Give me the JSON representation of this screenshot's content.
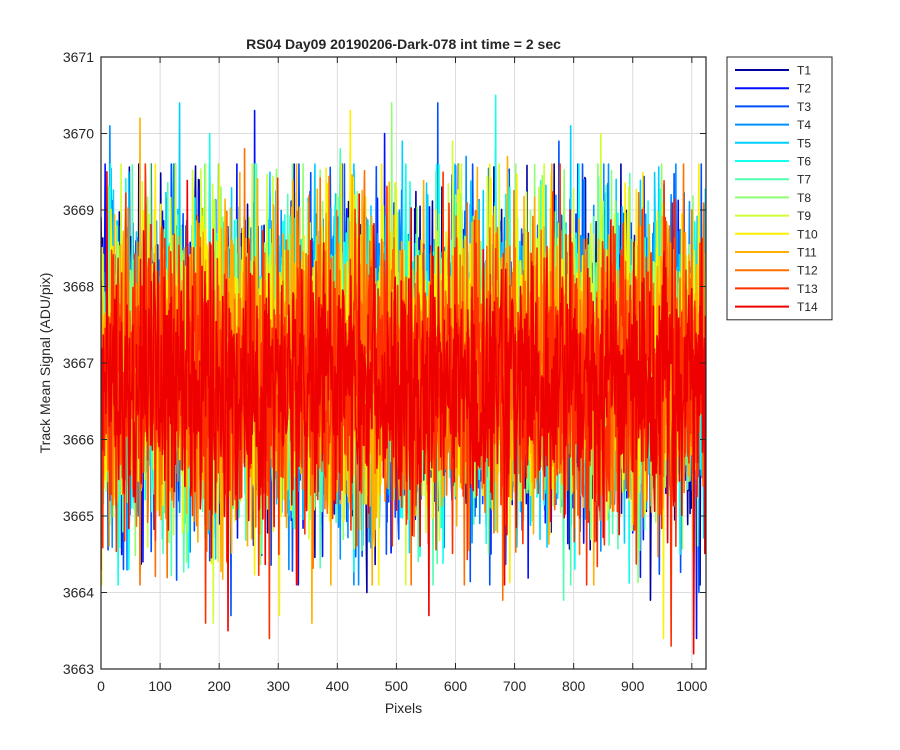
{
  "chart_data": {
    "type": "line",
    "title": "RS04 Day09 20190206-Dark-078 int time = 2 sec",
    "xlabel": "Pixels",
    "ylabel": "Track Mean Signal (ADU/pix)",
    "xlim": [
      0,
      1024
    ],
    "ylim": [
      3663,
      3671
    ],
    "xticks": [
      0,
      100,
      200,
      300,
      400,
      500,
      600,
      700,
      800,
      900,
      1000
    ],
    "yticks": [
      3663,
      3664,
      3665,
      3666,
      3667,
      3668,
      3669,
      3670,
      3671
    ],
    "grid": true,
    "legend_position": "outside-top-right",
    "num_points_per_series": 1024,
    "series": [
      {
        "name": "T1",
        "color": "#00009F",
        "mean": 3667.0,
        "sd": 1.0,
        "spikes": [
          {
            "x": 165,
            "y": 3669.4
          },
          {
            "x": 450,
            "y": 3664.0
          },
          {
            "x": 668,
            "y": 3669.8
          },
          {
            "x": 930,
            "y": 3663.9
          }
        ]
      },
      {
        "name": "T2",
        "color": "#0010FF",
        "mean": 3667.0,
        "sd": 1.0,
        "spikes": [
          {
            "x": 260,
            "y": 3670.3
          },
          {
            "x": 480,
            "y": 3670.0
          },
          {
            "x": 913,
            "y": 3664.2
          },
          {
            "x": 1008,
            "y": 3663.4
          }
        ]
      },
      {
        "name": "T3",
        "color": "#0050FF",
        "mean": 3666.9,
        "sd": 1.0,
        "spikes": [
          {
            "x": 220,
            "y": 3663.7
          },
          {
            "x": 570,
            "y": 3670.4
          },
          {
            "x": 775,
            "y": 3669.9
          },
          {
            "x": 1012,
            "y": 3664.0
          }
        ]
      },
      {
        "name": "T4",
        "color": "#0090FF",
        "mean": 3667.0,
        "sd": 1.0,
        "spikes": [
          {
            "x": 15,
            "y": 3670.1
          },
          {
            "x": 318,
            "y": 3664.3
          },
          {
            "x": 618,
            "y": 3669.7
          },
          {
            "x": 965,
            "y": 3669.2
          }
        ]
      },
      {
        "name": "T5",
        "color": "#00D0FF",
        "mean": 3667.0,
        "sd": 1.0,
        "spikes": [
          {
            "x": 133,
            "y": 3670.4
          },
          {
            "x": 510,
            "y": 3669.9
          },
          {
            "x": 795,
            "y": 3670.1
          },
          {
            "x": 872,
            "y": 3669.4
          }
        ]
      },
      {
        "name": "T6",
        "color": "#10FFEF",
        "mean": 3667.0,
        "sd": 1.0,
        "spikes": [
          {
            "x": 668,
            "y": 3670.5
          },
          {
            "x": 184,
            "y": 3670.0
          },
          {
            "x": 980,
            "y": 3664.5
          }
        ]
      },
      {
        "name": "T7",
        "color": "#50FFAF",
        "mean": 3666.9,
        "sd": 1.0,
        "spikes": [
          {
            "x": 783,
            "y": 3663.9
          },
          {
            "x": 405,
            "y": 3669.8
          },
          {
            "x": 25,
            "y": 3665.1
          }
        ]
      },
      {
        "name": "T8",
        "color": "#90FF6F",
        "mean": 3667.0,
        "sd": 1.0,
        "spikes": [
          {
            "x": 492,
            "y": 3670.4
          },
          {
            "x": 145,
            "y": 3664.4
          },
          {
            "x": 702,
            "y": 3669.6
          }
        ]
      },
      {
        "name": "T9",
        "color": "#CFFF30",
        "mean": 3667.0,
        "sd": 1.0,
        "spikes": [
          {
            "x": 190,
            "y": 3663.6
          },
          {
            "x": 595,
            "y": 3669.9
          },
          {
            "x": 846,
            "y": 3670.0
          }
        ]
      },
      {
        "name": "T10",
        "color": "#FFEF00",
        "mean": 3667.0,
        "sd": 1.0,
        "spikes": [
          {
            "x": 422,
            "y": 3670.3
          },
          {
            "x": 302,
            "y": 3663.7
          },
          {
            "x": 952,
            "y": 3663.4
          },
          {
            "x": 893,
            "y": 3669.3
          }
        ]
      },
      {
        "name": "T11",
        "color": "#FFAF00",
        "mean": 3666.9,
        "sd": 1.0,
        "spikes": [
          {
            "x": 66,
            "y": 3670.2
          },
          {
            "x": 357,
            "y": 3663.6
          },
          {
            "x": 688,
            "y": 3669.7
          }
        ]
      },
      {
        "name": "T12",
        "color": "#FF7000",
        "mean": 3666.9,
        "sd": 1.0,
        "spikes": [
          {
            "x": 243,
            "y": 3669.8
          },
          {
            "x": 680,
            "y": 3663.9
          },
          {
            "x": 1000,
            "y": 3669.0
          }
        ]
      },
      {
        "name": "T13",
        "color": "#FF3000",
        "mean": 3666.8,
        "sd": 0.95,
        "spikes": [
          {
            "x": 177,
            "y": 3663.6
          },
          {
            "x": 285,
            "y": 3663.4
          },
          {
            "x": 965,
            "y": 3663.3
          },
          {
            "x": 75,
            "y": 3669.6
          }
        ]
      },
      {
        "name": "T14",
        "color": "#EF0000",
        "mean": 3666.7,
        "sd": 0.85,
        "spikes": [
          {
            "x": 555,
            "y": 3663.7
          },
          {
            "x": 1003,
            "y": 3663.2
          },
          {
            "x": 215,
            "y": 3663.5
          },
          {
            "x": 10,
            "y": 3669.5
          }
        ]
      }
    ]
  }
}
